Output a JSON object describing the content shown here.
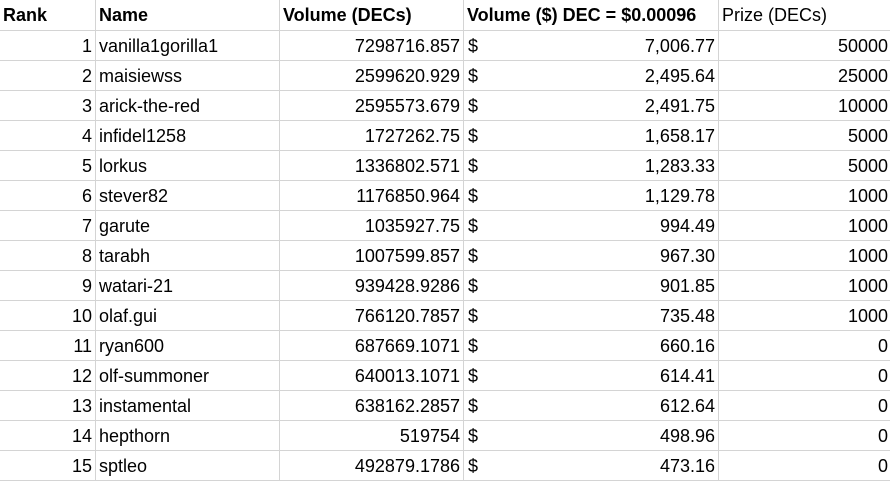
{
  "headers": {
    "rank": "Rank",
    "name": "Name",
    "volume_decs": "Volume (DECs)",
    "volume_usd": "Volume ($) DEC = $0.00096",
    "prize": "Prize (DECs)"
  },
  "currency_symbol": "$",
  "rows": [
    {
      "rank": "1",
      "name": "vanilla1gorilla1",
      "volume": "7298716.857",
      "usd": "7,006.77",
      "prize": "50000"
    },
    {
      "rank": "2",
      "name": "maisiewss",
      "volume": "2599620.929",
      "usd": "2,495.64",
      "prize": "25000"
    },
    {
      "rank": "3",
      "name": "arick-the-red",
      "volume": "2595573.679",
      "usd": "2,491.75",
      "prize": "10000"
    },
    {
      "rank": "4",
      "name": "infidel1258",
      "volume": "1727262.75",
      "usd": "1,658.17",
      "prize": "5000"
    },
    {
      "rank": "5",
      "name": "lorkus",
      "volume": "1336802.571",
      "usd": "1,283.33",
      "prize": "5000"
    },
    {
      "rank": "6",
      "name": "stever82",
      "volume": "1176850.964",
      "usd": "1,129.78",
      "prize": "1000"
    },
    {
      "rank": "7",
      "name": "garute",
      "volume": "1035927.75",
      "usd": "994.49",
      "prize": "1000"
    },
    {
      "rank": "8",
      "name": "tarabh",
      "volume": "1007599.857",
      "usd": "967.30",
      "prize": "1000"
    },
    {
      "rank": "9",
      "name": "watari-21",
      "volume": "939428.9286",
      "usd": "901.85",
      "prize": "1000"
    },
    {
      "rank": "10",
      "name": "olaf.gui",
      "volume": "766120.7857",
      "usd": "735.48",
      "prize": "1000"
    },
    {
      "rank": "11",
      "name": "ryan600",
      "volume": "687669.1071",
      "usd": "660.16",
      "prize": "0"
    },
    {
      "rank": "12",
      "name": "olf-summoner",
      "volume": "640013.1071",
      "usd": "614.41",
      "prize": "0"
    },
    {
      "rank": "13",
      "name": "instamental",
      "volume": "638162.2857",
      "usd": "612.64",
      "prize": "0"
    },
    {
      "rank": "14",
      "name": "hepthorn",
      "volume": "519754",
      "usd": "498.96",
      "prize": "0"
    },
    {
      "rank": "15",
      "name": "sptleo",
      "volume": "492879.1786",
      "usd": "473.16",
      "prize": "0"
    }
  ]
}
